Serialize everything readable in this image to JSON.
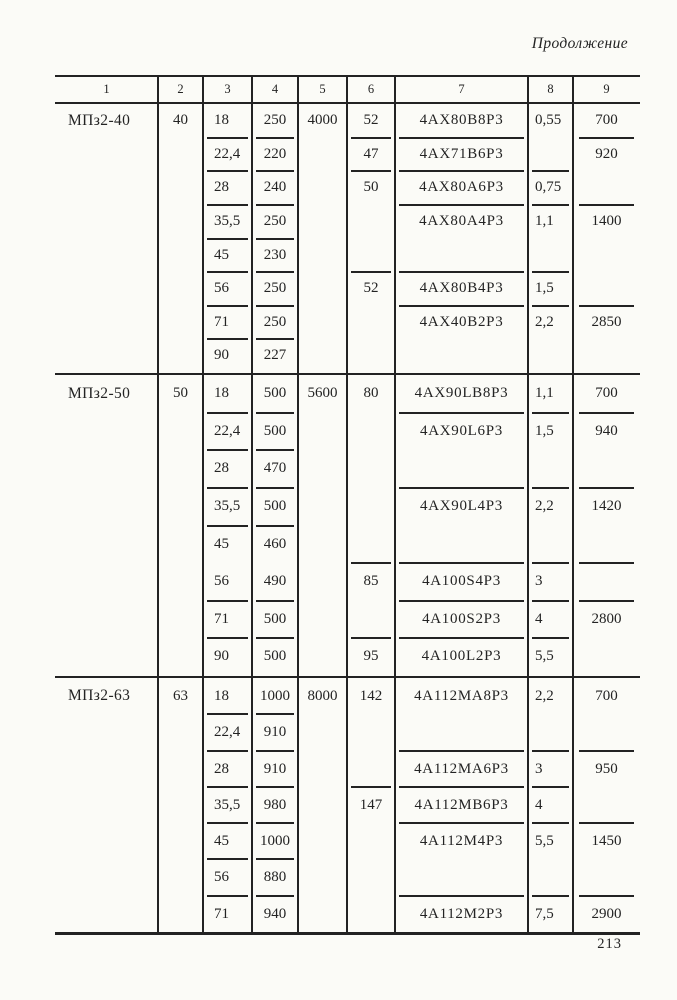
{
  "page": {
    "continuation_label": "Продолжение",
    "page_number": "213"
  },
  "colors": {
    "ink": "#232323",
    "paper": "#fbfbf7"
  },
  "table": {
    "column_headers": [
      "1",
      "2",
      "3",
      "4",
      "5",
      "6",
      "7",
      "8",
      "9"
    ],
    "sections": [
      {
        "gearbox": "МПз2-40",
        "rows": 8,
        "cells": [
          {
            "c": 1,
            "r": 1,
            "rs": 8,
            "t": "МПз2-40"
          },
          {
            "c": 2,
            "r": 1,
            "rs": 8,
            "t": "40"
          },
          {
            "c": 3,
            "r": 1,
            "t": "18",
            "sep": true
          },
          {
            "c": 3,
            "r": 2,
            "t": "22,4",
            "sep": true
          },
          {
            "c": 3,
            "r": 3,
            "t": "28",
            "sep": true
          },
          {
            "c": 3,
            "r": 4,
            "t": "35,5",
            "sep": true
          },
          {
            "c": 3,
            "r": 5,
            "t": "45",
            "sep": true
          },
          {
            "c": 3,
            "r": 6,
            "t": "56",
            "sep": true
          },
          {
            "c": 3,
            "r": 7,
            "t": "71",
            "sep": true
          },
          {
            "c": 3,
            "r": 8,
            "t": "90"
          },
          {
            "c": 4,
            "r": 1,
            "t": "250",
            "sep": true
          },
          {
            "c": 4,
            "r": 2,
            "t": "220",
            "sep": true
          },
          {
            "c": 4,
            "r": 3,
            "t": "240",
            "sep": true
          },
          {
            "c": 4,
            "r": 4,
            "t": "250",
            "sep": true
          },
          {
            "c": 4,
            "r": 5,
            "t": "230",
            "sep": true
          },
          {
            "c": 4,
            "r": 6,
            "t": "250",
            "sep": true
          },
          {
            "c": 4,
            "r": 7,
            "t": "250",
            "sep": true
          },
          {
            "c": 4,
            "r": 8,
            "t": "227"
          },
          {
            "c": 5,
            "r": 1,
            "rs": 8,
            "t": "4000"
          },
          {
            "c": 6,
            "r": 1,
            "t": "52",
            "sep": true
          },
          {
            "c": 6,
            "r": 2,
            "t": "47",
            "sep": true
          },
          {
            "c": 6,
            "r": 3,
            "rs": 3,
            "t": "50",
            "sep": true
          },
          {
            "c": 6,
            "r": 6,
            "rs": 3,
            "t": "52"
          },
          {
            "c": 7,
            "r": 1,
            "t": "4АХ80В8Р3",
            "sep": true
          },
          {
            "c": 7,
            "r": 2,
            "t": "4АХ71В6Р3",
            "sep": true
          },
          {
            "c": 7,
            "r": 3,
            "t": "4АХ80А6Р3",
            "sep": true
          },
          {
            "c": 7,
            "r": 4,
            "rs": 2,
            "t": "4АХ80А4Р3",
            "sep": true
          },
          {
            "c": 7,
            "r": 6,
            "t": "4АХ80В4Р3",
            "sep": true
          },
          {
            "c": 7,
            "r": 7,
            "rs": 2,
            "t": "4АХ40В2Р3"
          },
          {
            "c": 8,
            "r": 1,
            "rs": 2,
            "t": "0,55",
            "sep": true
          },
          {
            "c": 8,
            "r": 3,
            "t": "0,75",
            "sep": true
          },
          {
            "c": 8,
            "r": 4,
            "rs": 2,
            "t": "1,1",
            "sep": true
          },
          {
            "c": 8,
            "r": 6,
            "t": "1,5",
            "sep": true
          },
          {
            "c": 8,
            "r": 7,
            "rs": 2,
            "t": "2,2"
          },
          {
            "c": 9,
            "r": 1,
            "t": "700",
            "sep": true
          },
          {
            "c": 9,
            "r": 2,
            "rs": 2,
            "t": "920",
            "sep": true
          },
          {
            "c": 9,
            "r": 4,
            "rs": 3,
            "t": "1400",
            "sep": true
          },
          {
            "c": 9,
            "r": 7,
            "rs": 2,
            "t": "2850"
          }
        ]
      },
      {
        "gearbox": "МПз2-50",
        "rows": 8,
        "cells": [
          {
            "c": 1,
            "r": 1,
            "rs": 8,
            "t": "МПз2-50"
          },
          {
            "c": 2,
            "r": 1,
            "rs": 8,
            "t": "50"
          },
          {
            "c": 3,
            "r": 1,
            "t": "18",
            "sep": true
          },
          {
            "c": 3,
            "r": 2,
            "t": "22,4",
            "sep": true
          },
          {
            "c": 3,
            "r": 3,
            "t": "28",
            "sep": true
          },
          {
            "c": 3,
            "r": 4,
            "t": "35,5",
            "sep": true
          },
          {
            "c": 3,
            "r": 5,
            "t": "45"
          },
          {
            "c": 3,
            "r": 6,
            "t": "56",
            "sep": true
          },
          {
            "c": 3,
            "r": 7,
            "t": "71",
            "sep": true
          },
          {
            "c": 3,
            "r": 8,
            "t": "90"
          },
          {
            "c": 4,
            "r": 1,
            "t": "500",
            "sep": true
          },
          {
            "c": 4,
            "r": 2,
            "t": "500",
            "sep": true
          },
          {
            "c": 4,
            "r": 3,
            "t": "470",
            "sep": true
          },
          {
            "c": 4,
            "r": 4,
            "t": "500",
            "sep": true
          },
          {
            "c": 4,
            "r": 5,
            "t": "460"
          },
          {
            "c": 4,
            "r": 6,
            "t": "490",
            "sep": true
          },
          {
            "c": 4,
            "r": 7,
            "t": "500",
            "sep": true
          },
          {
            "c": 4,
            "r": 8,
            "t": "500"
          },
          {
            "c": 5,
            "r": 1,
            "rs": 8,
            "t": "5600"
          },
          {
            "c": 6,
            "r": 1,
            "rs": 5,
            "t": "80",
            "sep": true
          },
          {
            "c": 6,
            "r": 6,
            "rs": 2,
            "t": "85",
            "sep": true
          },
          {
            "c": 6,
            "r": 8,
            "t": "95"
          },
          {
            "c": 7,
            "r": 1,
            "t": "4АХ90LВ8Р3",
            "sep": true
          },
          {
            "c": 7,
            "r": 2,
            "rs": 2,
            "t": "4АХ90L6Р3",
            "sep": true
          },
          {
            "c": 7,
            "r": 4,
            "rs": 2,
            "t": "4АХ90L4Р3",
            "sep": true
          },
          {
            "c": 7,
            "r": 6,
            "t": "4А100S4Р3",
            "sep": true
          },
          {
            "c": 7,
            "r": 7,
            "t": "4А100S2Р3",
            "sep": true
          },
          {
            "c": 7,
            "r": 8,
            "t": "4А100L2Р3"
          },
          {
            "c": 8,
            "r": 1,
            "t": "1,1",
            "sep": true
          },
          {
            "c": 8,
            "r": 2,
            "rs": 2,
            "t": "1,5",
            "sep": true
          },
          {
            "c": 8,
            "r": 4,
            "rs": 2,
            "t": "2,2",
            "sep": true
          },
          {
            "c": 8,
            "r": 6,
            "t": "3",
            "sep": true
          },
          {
            "c": 8,
            "r": 7,
            "t": "4",
            "sep": true
          },
          {
            "c": 8,
            "r": 8,
            "t": "5,5"
          },
          {
            "c": 9,
            "r": 1,
            "t": "700",
            "sep": true
          },
          {
            "c": 9,
            "r": 2,
            "rs": 2,
            "t": "940",
            "sep": true
          },
          {
            "c": 9,
            "r": 4,
            "rs": 2,
            "t": "1420",
            "sep": true
          },
          {
            "c": 9,
            "r": 6,
            "t": "",
            "sep": true
          },
          {
            "c": 9,
            "r": 7,
            "rs": 2,
            "t": "2800"
          }
        ]
      },
      {
        "gearbox": "МПз2-63",
        "rows": 7,
        "cells": [
          {
            "c": 1,
            "r": 1,
            "rs": 7,
            "t": "МПз2-63"
          },
          {
            "c": 2,
            "r": 1,
            "rs": 7,
            "t": "63"
          },
          {
            "c": 3,
            "r": 1,
            "t": "18",
            "sep": true
          },
          {
            "c": 3,
            "r": 2,
            "t": "22,4",
            "sep": true
          },
          {
            "c": 3,
            "r": 3,
            "t": "28",
            "sep": true
          },
          {
            "c": 3,
            "r": 4,
            "t": "35,5",
            "sep": true
          },
          {
            "c": 3,
            "r": 5,
            "t": "45",
            "sep": true
          },
          {
            "c": 3,
            "r": 6,
            "t": "56",
            "sep": true
          },
          {
            "c": 3,
            "r": 7,
            "t": "71"
          },
          {
            "c": 4,
            "r": 1,
            "t": "1000",
            "sep": true
          },
          {
            "c": 4,
            "r": 2,
            "t": "910",
            "sep": true
          },
          {
            "c": 4,
            "r": 3,
            "t": "910",
            "sep": true
          },
          {
            "c": 4,
            "r": 4,
            "t": "980",
            "sep": true
          },
          {
            "c": 4,
            "r": 5,
            "t": "1000",
            "sep": true
          },
          {
            "c": 4,
            "r": 6,
            "t": "880",
            "sep": true
          },
          {
            "c": 4,
            "r": 7,
            "t": "940"
          },
          {
            "c": 5,
            "r": 1,
            "rs": 7,
            "t": "8000"
          },
          {
            "c": 6,
            "r": 1,
            "rs": 3,
            "t": "142",
            "sep": true
          },
          {
            "c": 6,
            "r": 4,
            "rs": 4,
            "t": "147"
          },
          {
            "c": 7,
            "r": 1,
            "rs": 2,
            "t": "4А112МА8Р3",
            "sep": true
          },
          {
            "c": 7,
            "r": 3,
            "t": "4А112МА6Р3",
            "sep": true
          },
          {
            "c": 7,
            "r": 4,
            "t": "4А112МВ6Р3",
            "sep": true
          },
          {
            "c": 7,
            "r": 5,
            "rs": 2,
            "t": "4А112М4Р3",
            "sep": true
          },
          {
            "c": 7,
            "r": 7,
            "t": "4А112М2Р3"
          },
          {
            "c": 8,
            "r": 1,
            "rs": 2,
            "t": "2,2",
            "sep": true
          },
          {
            "c": 8,
            "r": 3,
            "t": "3",
            "sep": true
          },
          {
            "c": 8,
            "r": 4,
            "t": "4",
            "sep": true
          },
          {
            "c": 8,
            "r": 5,
            "rs": 2,
            "t": "5,5",
            "sep": true
          },
          {
            "c": 8,
            "r": 7,
            "t": "7,5"
          },
          {
            "c": 9,
            "r": 1,
            "rs": 2,
            "t": "700",
            "sep": true
          },
          {
            "c": 9,
            "r": 3,
            "rs": 2,
            "t": "950",
            "sep": true
          },
          {
            "c": 9,
            "r": 5,
            "rs": 2,
            "t": "1450",
            "sep": true
          },
          {
            "c": 9,
            "r": 7,
            "t": "2900"
          }
        ]
      }
    ]
  }
}
